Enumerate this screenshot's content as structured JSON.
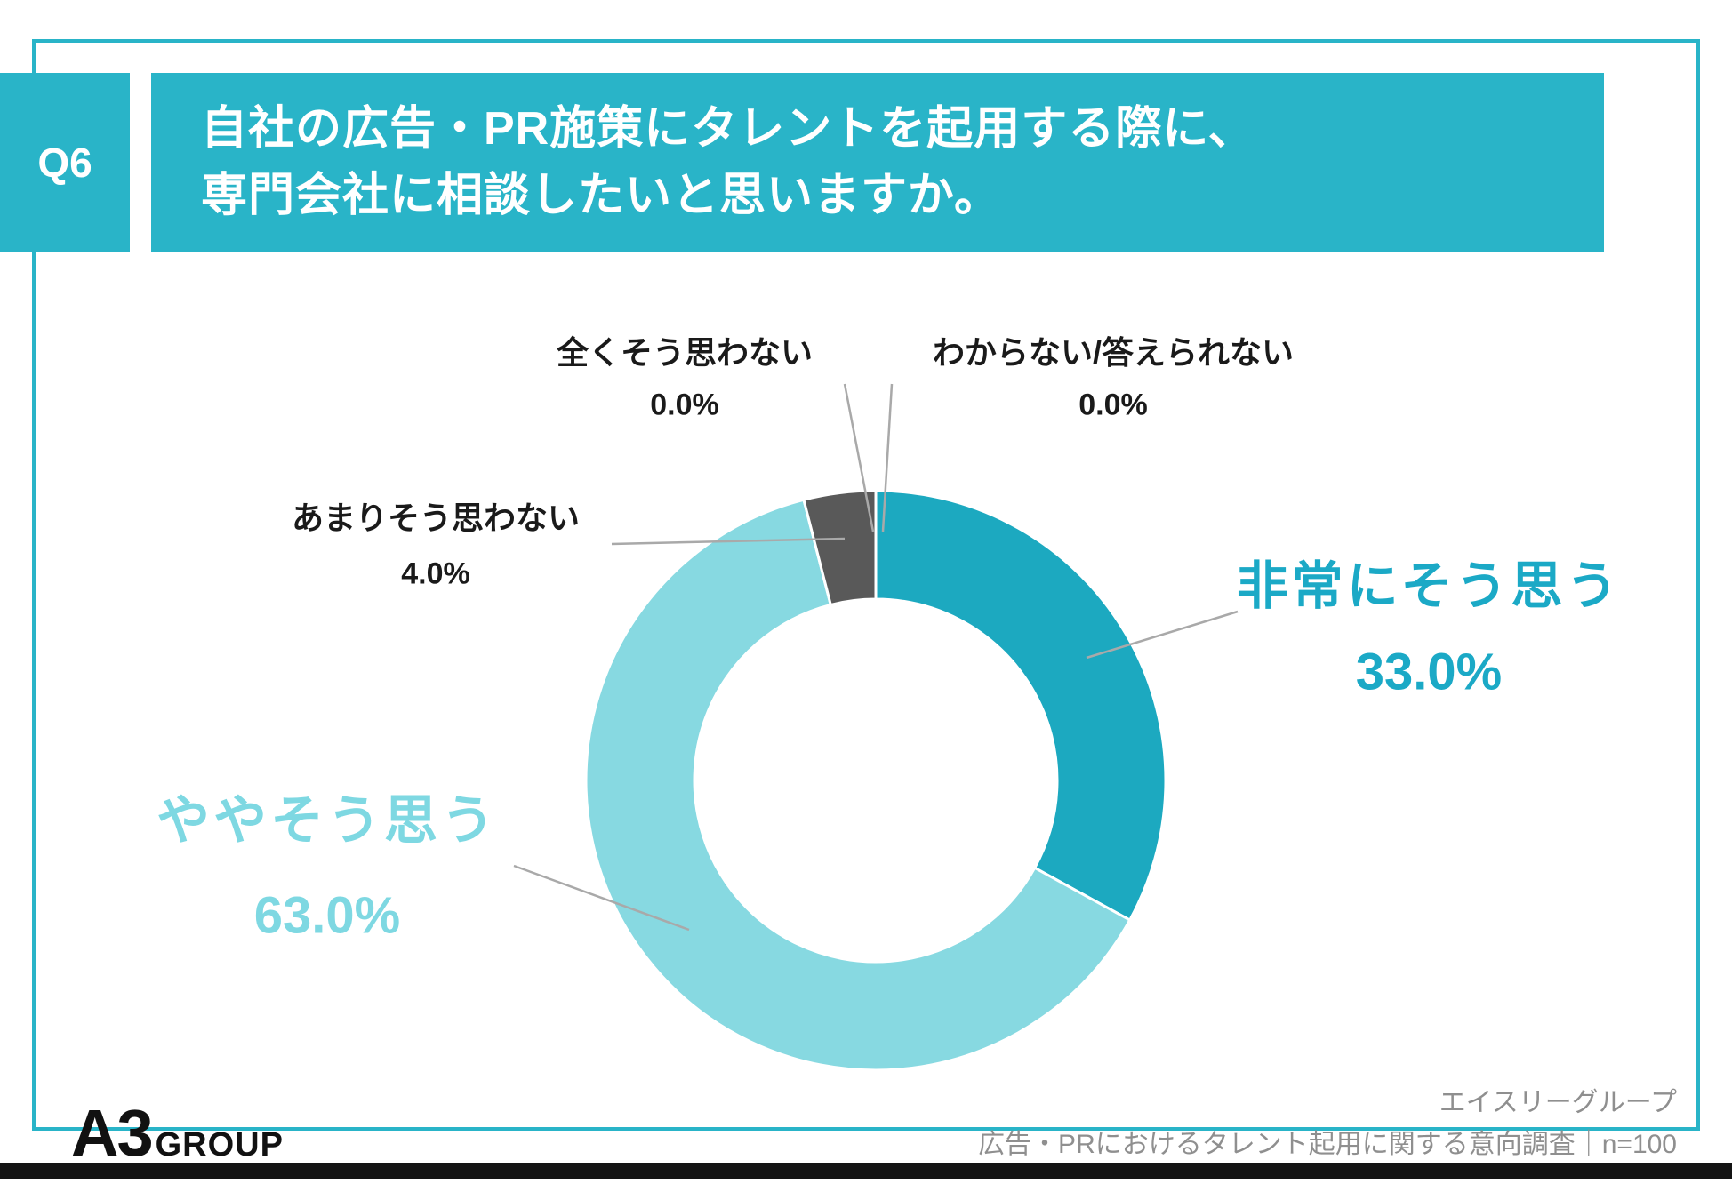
{
  "slide": {
    "question_tag": "Q6",
    "title": {
      "lines": [
        "自社の広告・PR施策にタレントを起用する際に、",
        "専門会社に相談したいと思いますか。"
      ]
    },
    "footer": {
      "logo_a3": "A3",
      "logo_group": "GROUP",
      "credit_line1": "エイスリーグループ",
      "credit_line2": "広告・PRにおけるタレント起用に関する意向調査｜n=100"
    },
    "colors": {
      "accent_teal": "#29b4c8",
      "segment_teal": "#1ca9c0",
      "segment_light_cyan": "#87d9e1",
      "segment_gray": "#595959",
      "label_teal_text": "#1ba9c6",
      "label_cyan_text": "#7ed8e2",
      "leader_line": "#a9a9a9",
      "credit_text": "#8f8f8f"
    }
  },
  "chart_data": {
    "type": "pie",
    "donut": true,
    "title": "自社の広告・PR施策にタレントを起用する際に、専門会社に相談したいと思いますか。",
    "n": 100,
    "unit": "%",
    "start_angle_deg": 0,
    "direction": "clockwise",
    "legend_position": "none",
    "segments": [
      {
        "label": "非常にそう思う",
        "value": 33.0,
        "pct_label": "33.0%",
        "color": "#1ca9c0"
      },
      {
        "label": "ややそう思う",
        "value": 63.0,
        "pct_label": "63.0%",
        "color": "#87d9e1"
      },
      {
        "label": "あまりそう思わない",
        "value": 4.0,
        "pct_label": "4.0%",
        "color": "#595959"
      },
      {
        "label": "全くそう思わない",
        "value": 0.0,
        "pct_label": "0.0%",
        "color": "#b3b3b3"
      },
      {
        "label": "わからない/答えられない",
        "value": 0.0,
        "pct_label": "0.0%",
        "color": "#d9d9d9"
      }
    ]
  }
}
